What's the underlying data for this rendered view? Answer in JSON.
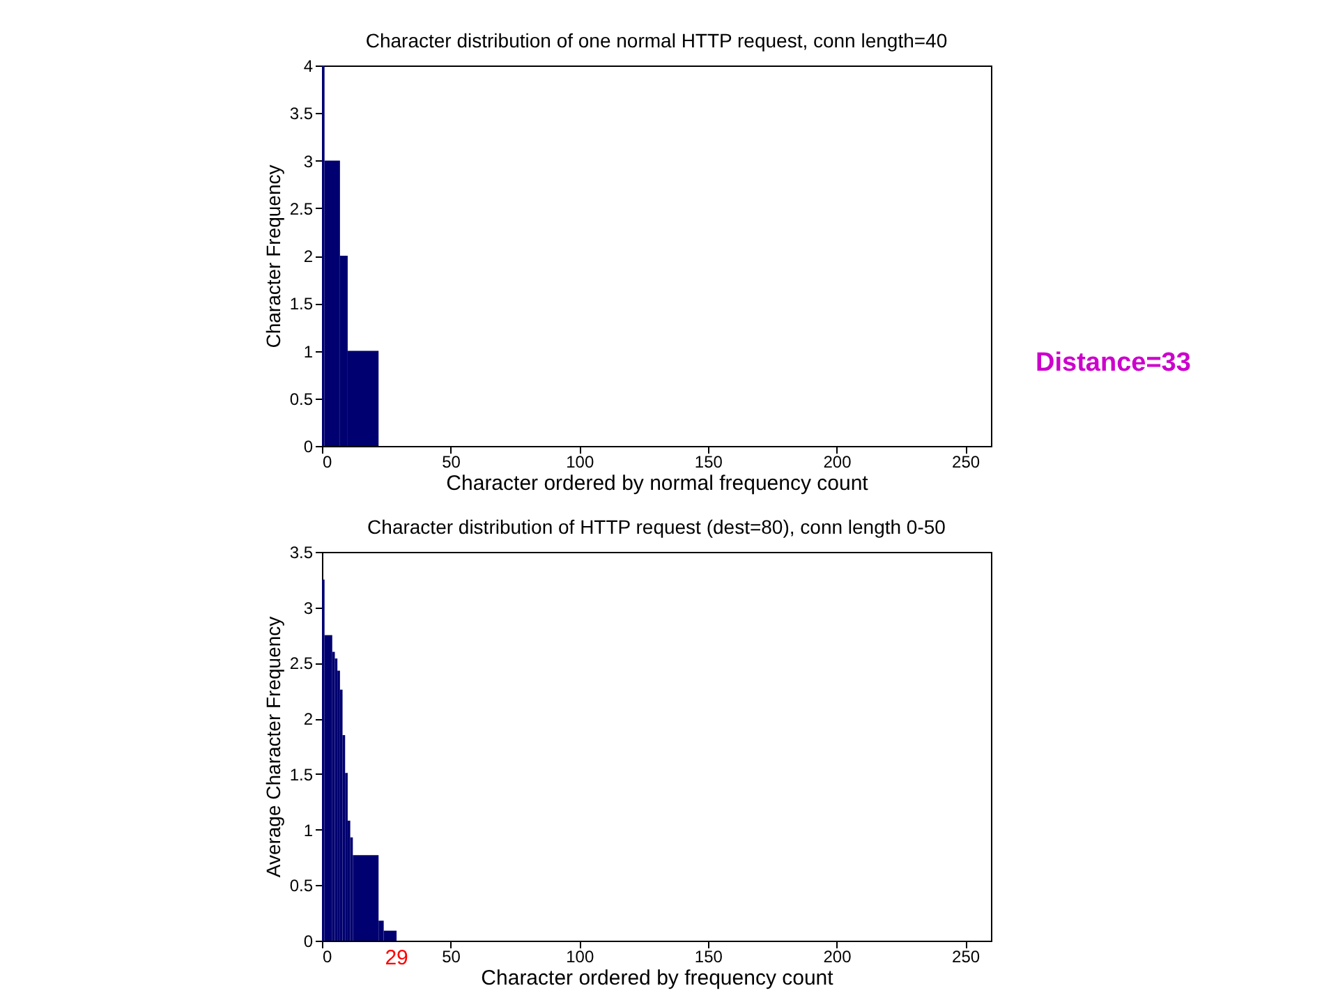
{
  "chart_data": [
    {
      "type": "histogram",
      "title": "Character distribution of one normal HTTP request, conn length=40",
      "xlabel": "Character ordered by normal frequency count",
      "ylabel": "Character Frequency",
      "bins": [
        0,
        1,
        7,
        10,
        22
      ],
      "values": [
        4,
        3,
        2,
        1
      ],
      "color": "#000070",
      "xlim": [
        0,
        260
      ],
      "xticks": [
        0,
        50,
        100,
        150,
        200,
        250
      ],
      "ylim": [
        0,
        4
      ],
      "yticks": [
        0,
        0.5,
        1,
        1.5,
        2,
        2.5,
        3,
        3.5,
        4
      ],
      "annotations": [
        "Distance=33"
      ]
    },
    {
      "type": "histogram",
      "title": "Character distribution of HTTP request (dest=80), conn length 0-50",
      "xlabel": "Character ordered by frequency count",
      "ylabel": "Average Character Frequency",
      "bins": [
        0,
        1,
        4,
        5,
        6,
        7,
        8,
        9,
        10,
        11,
        12,
        22,
        24,
        29
      ],
      "values": [
        3.25,
        2.75,
        2.6,
        2.54,
        2.43,
        2.26,
        1.85,
        1.51,
        1.08,
        0.93,
        0.77,
        0.18,
        0.09
      ],
      "color": "#000070",
      "xlim": [
        0,
        260
      ],
      "xticks": [
        0,
        50,
        100,
        150,
        200,
        250
      ],
      "ylim": [
        0,
        3.5
      ],
      "yticks": [
        0,
        0.5,
        1,
        1.5,
        2,
        2.5,
        3,
        3.5
      ],
      "annotations": [
        {
          "text": "29",
          "x": 29,
          "y": 0
        }
      ]
    }
  ]
}
